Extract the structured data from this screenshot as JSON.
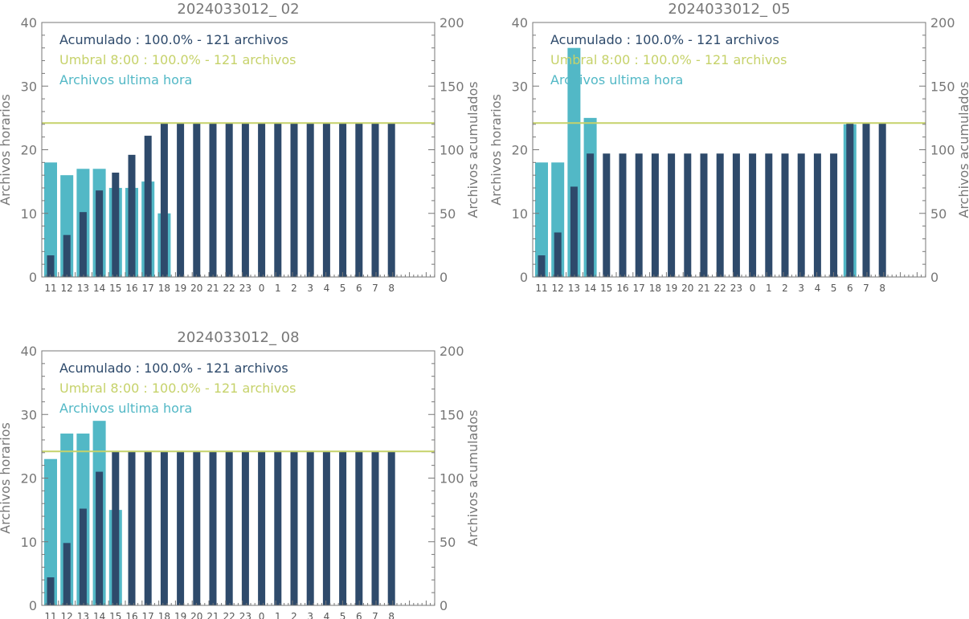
{
  "colors": {
    "accumulated": "#2e4a6b",
    "hourly": "#52b8c6",
    "threshold": "#c6d26a",
    "axis": "#777777",
    "title": "#777777"
  },
  "chart_data": [
    {
      "type": "bar",
      "title": "2024033012_ 02",
      "ylabel_left": "Archivos horarios",
      "ylabel_right": "Archivos acumulados",
      "ylim_left": [
        0,
        40
      ],
      "ylim_right": [
        0,
        200
      ],
      "yticks_left": [
        "0",
        "10",
        "20",
        "30",
        "40"
      ],
      "yticks_right": [
        "0",
        "50",
        "100",
        "150",
        "200"
      ],
      "categories": [
        "11",
        "12",
        "13",
        "14",
        "15",
        "16",
        "17",
        "18",
        "19",
        "20",
        "21",
        "22",
        "23",
        "0",
        "1",
        "2",
        "3",
        "4",
        "5",
        "6",
        "7",
        "8"
      ],
      "legend": {
        "accumulated": "Acumulado : 100.0% - 121 archivos",
        "threshold": "Umbral 8:00 : 100.0% - 121 archivos",
        "hourly": "Archivos ultima hora"
      },
      "threshold_value": 121,
      "series": [
        {
          "name": "Archivos ultima hora",
          "axis": "left",
          "values": [
            18,
            16,
            17,
            17,
            14,
            14,
            15,
            10,
            0,
            0,
            0,
            0,
            0,
            0,
            0,
            0,
            0,
            0,
            0,
            0,
            0,
            0
          ]
        },
        {
          "name": "Acumulado",
          "axis": "right",
          "values": [
            17,
            33,
            51,
            68,
            82,
            96,
            111,
            121,
            121,
            121,
            121,
            121,
            121,
            121,
            121,
            121,
            121,
            121,
            121,
            121,
            121,
            121
          ]
        }
      ]
    },
    {
      "type": "bar",
      "title": "2024033012_ 05",
      "ylabel_left": "Archivos horarios",
      "ylabel_right": "Archivos acumulados",
      "ylim_left": [
        0,
        40
      ],
      "ylim_right": [
        0,
        200
      ],
      "yticks_left": [
        "0",
        "10",
        "20",
        "30",
        "40"
      ],
      "yticks_right": [
        "0",
        "50",
        "100",
        "150",
        "200"
      ],
      "categories": [
        "11",
        "12",
        "13",
        "14",
        "15",
        "16",
        "17",
        "18",
        "19",
        "20",
        "21",
        "22",
        "23",
        "0",
        "1",
        "2",
        "3",
        "4",
        "5",
        "6",
        "7",
        "8"
      ],
      "legend": {
        "accumulated": "Acumulado : 100.0% - 121 archivos",
        "threshold": "Umbral 8:00 : 100.0% - 121 archivos",
        "hourly": "Archivos ultima hora"
      },
      "threshold_value": 121,
      "series": [
        {
          "name": "Archivos ultima hora",
          "axis": "left",
          "values": [
            18,
            18,
            36,
            25,
            0,
            0,
            0,
            0,
            0,
            0,
            0,
            0,
            0,
            0,
            0,
            0,
            0,
            0,
            0,
            24,
            0,
            0
          ]
        },
        {
          "name": "Acumulado",
          "axis": "right",
          "values": [
            17,
            35,
            71,
            97,
            97,
            97,
            97,
            97,
            97,
            97,
            97,
            97,
            97,
            97,
            97,
            97,
            97,
            97,
            97,
            121,
            121,
            121
          ]
        }
      ]
    },
    {
      "type": "bar",
      "title": "2024033012_ 08",
      "ylabel_left": "Archivos horarios",
      "ylabel_right": "Archivos acumulados",
      "ylim_left": [
        0,
        40
      ],
      "ylim_right": [
        0,
        200
      ],
      "yticks_left": [
        "0",
        "10",
        "20",
        "30",
        "40"
      ],
      "yticks_right": [
        "0",
        "50",
        "100",
        "150",
        "200"
      ],
      "categories": [
        "11",
        "12",
        "13",
        "14",
        "15",
        "16",
        "17",
        "18",
        "19",
        "20",
        "21",
        "22",
        "23",
        "0",
        "1",
        "2",
        "3",
        "4",
        "5",
        "6",
        "7",
        "8"
      ],
      "legend": {
        "accumulated": "Acumulado : 100.0% - 121 archivos",
        "threshold": "Umbral 8:00 : 100.0% - 121 archivos",
        "hourly": "Archivos ultima hora"
      },
      "threshold_value": 121,
      "series": [
        {
          "name": "Archivos ultima hora",
          "axis": "left",
          "values": [
            23,
            27,
            27,
            29,
            15,
            0,
            0,
            0,
            0,
            0,
            0,
            0,
            0,
            0,
            0,
            0,
            0,
            0,
            0,
            0,
            0,
            0
          ]
        },
        {
          "name": "Acumulado",
          "axis": "right",
          "values": [
            22,
            49,
            76,
            105,
            121,
            121,
            121,
            121,
            121,
            121,
            121,
            121,
            121,
            121,
            121,
            121,
            121,
            121,
            121,
            121,
            121,
            121
          ]
        }
      ]
    }
  ]
}
